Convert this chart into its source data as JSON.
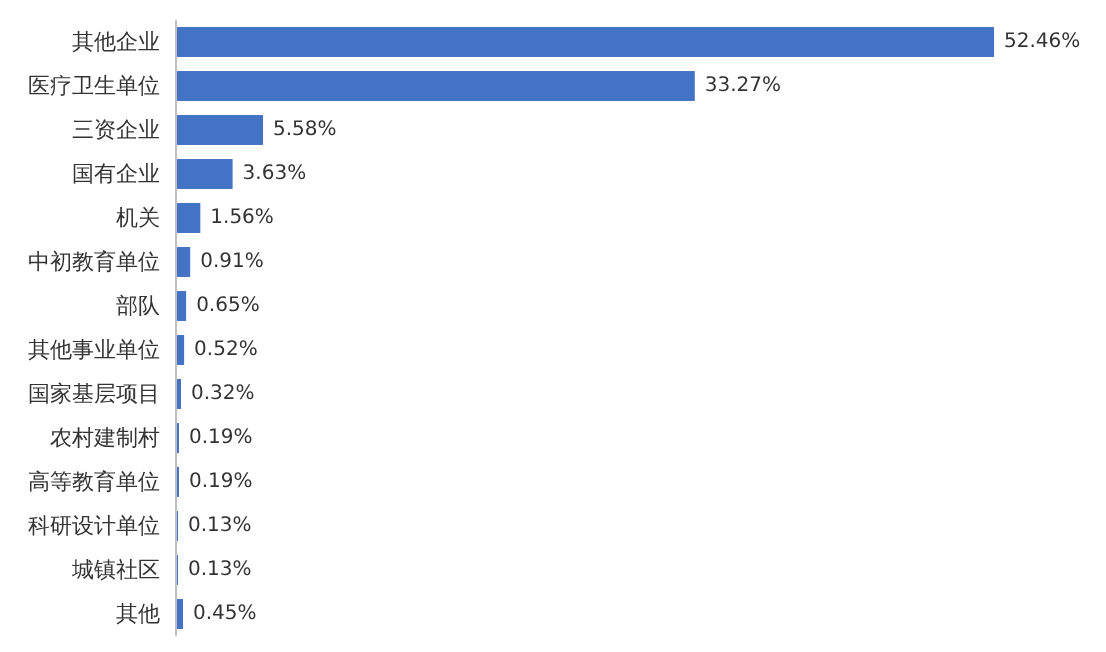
{
  "chart_data": {
    "type": "bar",
    "orientation": "horizontal",
    "categories": [
      "其他企业",
      "医疗卫生单位",
      "三资企业",
      "国有企业",
      "机关",
      "中初教育单位",
      "部队",
      "其他事业单位",
      "国家基层项目",
      "农村建制村",
      "高等教育单位",
      "科研设计单位",
      "城镇社区",
      "其他"
    ],
    "values": [
      52.46,
      33.27,
      5.58,
      3.63,
      1.56,
      0.91,
      0.65,
      0.52,
      0.32,
      0.19,
      0.19,
      0.13,
      0.13,
      0.45
    ],
    "value_labels": [
      "52.46%",
      "33.27%",
      "5.58%",
      "3.63%",
      "1.56%",
      "0.91%",
      "0.65%",
      "0.52%",
      "0.32%",
      "0.19%",
      "0.19%",
      "0.13%",
      "0.13%",
      "0.45%"
    ],
    "color": "#4472c4"
  }
}
